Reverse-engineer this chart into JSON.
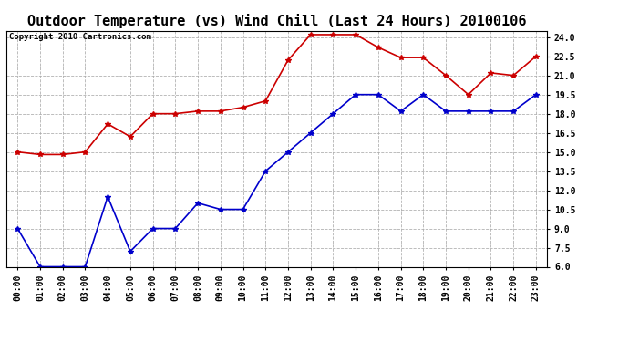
{
  "title": "Outdoor Temperature (vs) Wind Chill (Last 24 Hours) 20100106",
  "copyright_text": "Copyright 2010 Cartronics.com",
  "x_labels": [
    "00:00",
    "01:00",
    "02:00",
    "03:00",
    "04:00",
    "05:00",
    "06:00",
    "07:00",
    "08:00",
    "09:00",
    "10:00",
    "11:00",
    "12:00",
    "13:00",
    "14:00",
    "15:00",
    "16:00",
    "17:00",
    "18:00",
    "19:00",
    "20:00",
    "21:00",
    "22:00",
    "23:00"
  ],
  "temp_data": [
    15.0,
    14.8,
    14.8,
    15.0,
    17.2,
    16.2,
    18.0,
    18.0,
    18.2,
    18.2,
    18.5,
    19.0,
    22.2,
    24.2,
    24.2,
    24.2,
    23.2,
    22.4,
    22.4,
    21.0,
    19.5,
    21.2,
    21.0,
    22.5
  ],
  "windchill_data": [
    9.0,
    6.0,
    6.0,
    6.0,
    11.5,
    7.2,
    9.0,
    9.0,
    11.0,
    10.5,
    10.5,
    13.5,
    15.0,
    16.5,
    18.0,
    19.5,
    19.5,
    18.2,
    19.5,
    18.2,
    18.2,
    18.2,
    18.2,
    19.5
  ],
  "temp_color": "#cc0000",
  "windchill_color": "#0000cc",
  "bg_color": "#ffffff",
  "plot_bg_color": "#ffffff",
  "grid_color": "#aaaaaa",
  "ylim": [
    6.0,
    24.5
  ],
  "yticks": [
    6.0,
    7.5,
    9.0,
    10.5,
    12.0,
    13.5,
    15.0,
    16.5,
    18.0,
    19.5,
    21.0,
    22.5,
    24.0
  ],
  "title_fontsize": 11,
  "copyright_fontsize": 6.5,
  "tick_fontsize": 7,
  "marker": "*",
  "marker_size": 4,
  "line_width": 1.2
}
